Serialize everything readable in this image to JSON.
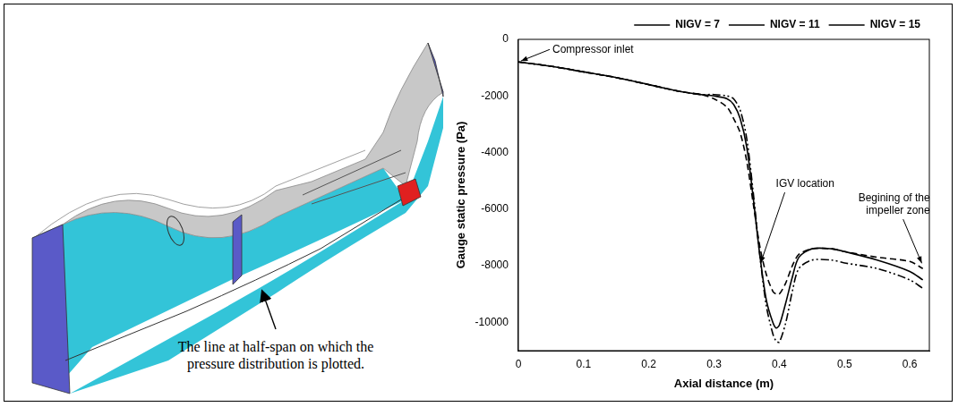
{
  "diagram": {
    "annotation": "The line at half-span on which the pressure distribution is plotted."
  },
  "chart_data": {
    "type": "line",
    "xlabel": "Axial distance (m)",
    "ylabel": "Gauge static pressure (Pa)",
    "x": [
      0,
      0.05,
      0.1,
      0.15,
      0.2,
      0.25,
      0.28,
      0.3,
      0.32,
      0.33,
      0.34,
      0.35,
      0.36,
      0.37,
      0.38,
      0.39,
      0.395,
      0.4,
      0.41,
      0.42,
      0.43,
      0.45,
      0.48,
      0.5,
      0.55,
      0.6,
      0.62
    ],
    "series": [
      {
        "name": "NIGV = 7",
        "color": "#000000",
        "line_style": "dashed",
        "values": [
          -800,
          -950,
          -1150,
          -1350,
          -1600,
          -1850,
          -1950,
          -2100,
          -2400,
          -2800,
          -3300,
          -4300,
          -5800,
          -7300,
          -8300,
          -8900,
          -9000,
          -9000,
          -8600,
          -8000,
          -7600,
          -7400,
          -7400,
          -7500,
          -7700,
          -7850,
          -8100
        ]
      },
      {
        "name": "NIGV = 11",
        "color": "#000000",
        "line_style": "solid",
        "values": [
          -800,
          -950,
          -1150,
          -1350,
          -1600,
          -1850,
          -1950,
          -2000,
          -2100,
          -2300,
          -2800,
          -3800,
          -5600,
          -7600,
          -9200,
          -10000,
          -10200,
          -10100,
          -9300,
          -8400,
          -7700,
          -7400,
          -7400,
          -7500,
          -7800,
          -8200,
          -8500
        ]
      },
      {
        "name": "NIGV = 15",
        "color": "#000000",
        "line_style": "dash-dot",
        "values": [
          -800,
          -950,
          -1150,
          -1350,
          -1600,
          -1850,
          -1950,
          -1950,
          -2000,
          -2100,
          -2500,
          -3500,
          -5400,
          -7600,
          -9400,
          -10400,
          -10650,
          -10700,
          -10000,
          -8900,
          -8100,
          -7800,
          -7800,
          -7900,
          -8100,
          -8500,
          -8800
        ]
      }
    ],
    "xlim": [
      0,
      0.63
    ],
    "xticks": [
      0,
      0.1,
      0.2,
      0.3,
      0.4,
      0.5,
      0.6
    ],
    "ylim": [
      -11000,
      0
    ],
    "yticks": [
      0,
      -2000,
      -4000,
      -6000,
      -8000,
      -10000
    ],
    "grid": false,
    "legend": "upper right",
    "annotations": [
      {
        "text": "Compressor inlet",
        "x": 0,
        "y": -800
      },
      {
        "text": "IGV location",
        "x": 0.37,
        "y": -8000
      },
      {
        "text": "Begining of the impeller zone",
        "x": 0.62,
        "y": -8000
      }
    ]
  }
}
